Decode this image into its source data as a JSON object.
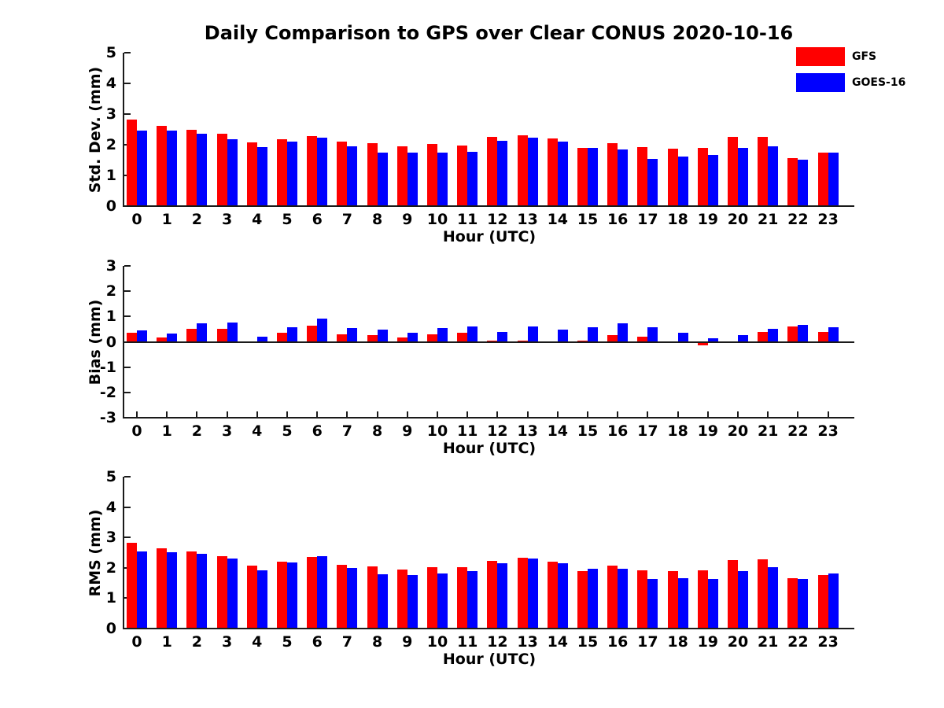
{
  "title": "Daily Comparison to GPS over Clear CONUS 2020-10-16",
  "colors": {
    "gfs": "#FF0000",
    "goes16": "#0000FF",
    "axis": "#1a1a1a",
    "background": "#FFFFFF"
  },
  "legend": {
    "position": "top-right",
    "items": [
      {
        "label": "GFS",
        "color": "#FF0000"
      },
      {
        "label": "GOES-16",
        "color": "#0000FF"
      }
    ]
  },
  "chart_data": [
    {
      "type": "bar",
      "title": "",
      "ylabel": "Std. Dev. (mm)",
      "xlabel": "Hour (UTC)",
      "ylim": [
        0,
        5
      ],
      "yticks": [
        0,
        1,
        2,
        3,
        4,
        5
      ],
      "grid": false,
      "categories": [
        "0",
        "1",
        "2",
        "3",
        "4",
        "5",
        "6",
        "7",
        "8",
        "9",
        "10",
        "11",
        "12",
        "13",
        "14",
        "15",
        "16",
        "17",
        "18",
        "19",
        "20",
        "21",
        "22",
        "23"
      ],
      "series": [
        {
          "name": "GFS",
          "color": "#FF0000",
          "values": [
            2.82,
            2.62,
            2.48,
            2.36,
            2.07,
            2.17,
            2.27,
            2.1,
            2.05,
            1.95,
            2.02,
            1.98,
            2.26,
            2.32,
            2.2,
            1.89,
            2.06,
            1.92,
            1.88,
            1.91,
            2.26,
            2.25,
            1.56,
            1.74
          ]
        },
        {
          "name": "GOES-16",
          "color": "#0000FF",
          "values": [
            2.47,
            2.47,
            2.36,
            2.17,
            1.92,
            2.11,
            2.23,
            1.95,
            1.74,
            1.74,
            1.75,
            1.78,
            2.13,
            2.22,
            2.09,
            1.91,
            1.84,
            1.54,
            1.61,
            1.66,
            1.89,
            1.94,
            1.51,
            1.75
          ]
        }
      ]
    },
    {
      "type": "bar",
      "title": "",
      "ylabel": "Bias (mm)",
      "xlabel": "Hour (UTC)",
      "ylim": [
        -3,
        3
      ],
      "yticks": [
        -3,
        -2,
        -1,
        0,
        1,
        2,
        3
      ],
      "grid": false,
      "categories": [
        "0",
        "1",
        "2",
        "3",
        "4",
        "5",
        "6",
        "7",
        "8",
        "9",
        "10",
        "11",
        "12",
        "13",
        "14",
        "15",
        "16",
        "17",
        "18",
        "19",
        "20",
        "21",
        "22",
        "23"
      ],
      "series": [
        {
          "name": "GFS",
          "color": "#FF0000",
          "values": [
            0.35,
            0.16,
            0.52,
            0.52,
            0.03,
            0.35,
            0.63,
            0.29,
            0.26,
            0.18,
            0.29,
            0.35,
            0.04,
            0.05,
            0.01,
            0.06,
            0.26,
            0.19,
            0.02,
            -0.14,
            0.03,
            0.4,
            0.62,
            0.4
          ]
        },
        {
          "name": "GOES-16",
          "color": "#0000FF",
          "values": [
            0.46,
            0.32,
            0.74,
            0.77,
            0.19,
            0.59,
            0.92,
            0.55,
            0.47,
            0.35,
            0.53,
            0.62,
            0.39,
            0.6,
            0.49,
            0.58,
            0.72,
            0.57,
            0.37,
            0.14,
            0.26,
            0.52,
            0.68,
            0.57
          ]
        }
      ]
    },
    {
      "type": "bar",
      "title": "",
      "ylabel": "RMS (mm)",
      "xlabel": "Hour (UTC)",
      "ylim": [
        0,
        5
      ],
      "yticks": [
        0,
        1,
        2,
        3,
        4,
        5
      ],
      "grid": false,
      "categories": [
        "0",
        "1",
        "2",
        "3",
        "4",
        "5",
        "6",
        "7",
        "8",
        "9",
        "10",
        "11",
        "12",
        "13",
        "14",
        "15",
        "16",
        "17",
        "18",
        "19",
        "20",
        "21",
        "22",
        "23"
      ],
      "series": [
        {
          "name": "GFS",
          "color": "#FF0000",
          "values": [
            2.83,
            2.63,
            2.53,
            2.39,
            2.06,
            2.21,
            2.37,
            2.1,
            2.05,
            1.95,
            2.03,
            2.02,
            2.24,
            2.33,
            2.21,
            1.9,
            2.08,
            1.92,
            1.89,
            1.92,
            2.26,
            2.28,
            1.66,
            1.76
          ]
        },
        {
          "name": "GOES-16",
          "color": "#0000FF",
          "values": [
            2.53,
            2.51,
            2.47,
            2.3,
            1.93,
            2.18,
            2.39,
            2.0,
            1.8,
            1.77,
            1.81,
            1.88,
            2.16,
            2.3,
            2.15,
            1.98,
            1.98,
            1.63,
            1.66,
            1.64,
            1.89,
            2.03,
            1.64,
            1.81
          ]
        }
      ]
    }
  ]
}
